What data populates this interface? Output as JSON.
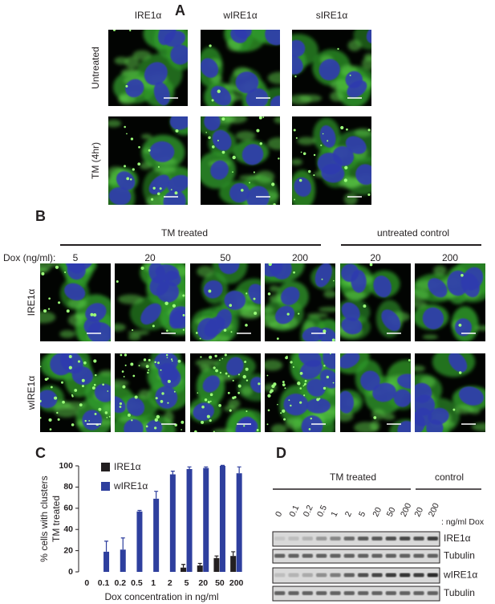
{
  "panels": {
    "a": {
      "label": "A",
      "columns": [
        "IRE1α",
        "wIRE1α",
        "sIRE1α"
      ],
      "rows": [
        "Untreated",
        "TM (4hr)"
      ]
    },
    "b": {
      "label": "B",
      "dox_label": "Dox (ng/ml):",
      "groups": [
        "TM treated",
        "untreated control"
      ],
      "doses": [
        "5",
        "20",
        "50",
        "200",
        "20",
        "200"
      ],
      "rows": [
        "IRE1α",
        "wIRE1α"
      ]
    },
    "c": {
      "label": "C"
    },
    "d": {
      "label": "D",
      "groups": [
        "TM treated",
        "control"
      ],
      "lanes": [
        "0",
        "0.1",
        "0.2",
        "0.5",
        "1",
        "2",
        "5",
        "20",
        "50",
        "200",
        "20",
        "200"
      ],
      "unit": ": ng/ml Dox",
      "blots": [
        "IRE1α",
        "Tubulin",
        "wIRE1α",
        "Tubulin"
      ]
    }
  },
  "chart_data": {
    "type": "bar",
    "ylabel": [
      "% cells with clusters",
      "TM treated"
    ],
    "xlabel": "Dox concentration in ng/ml",
    "categories": [
      "0",
      "0.1",
      "0.2",
      "0.5",
      "1",
      "2",
      "5",
      "20",
      "50",
      "200"
    ],
    "series": [
      {
        "name": "IRE1α",
        "color": "#231f20",
        "values": [
          0,
          0,
          0,
          0,
          0,
          0,
          4,
          6,
          13,
          15
        ],
        "errors": [
          0,
          0,
          0,
          0,
          0,
          0,
          3,
          2,
          2,
          4
        ]
      },
      {
        "name": "wIRE1α",
        "color": "#2e3f9e",
        "values": [
          0,
          19,
          21,
          57,
          69,
          92,
          97,
          98,
          100,
          93
        ],
        "errors": [
          0,
          10,
          11,
          1,
          7,
          3,
          2,
          1,
          0.5,
          6
        ]
      }
    ],
    "ylim": [
      0,
      100
    ],
    "yticks": [
      0,
      20,
      40,
      60,
      80,
      100
    ]
  }
}
